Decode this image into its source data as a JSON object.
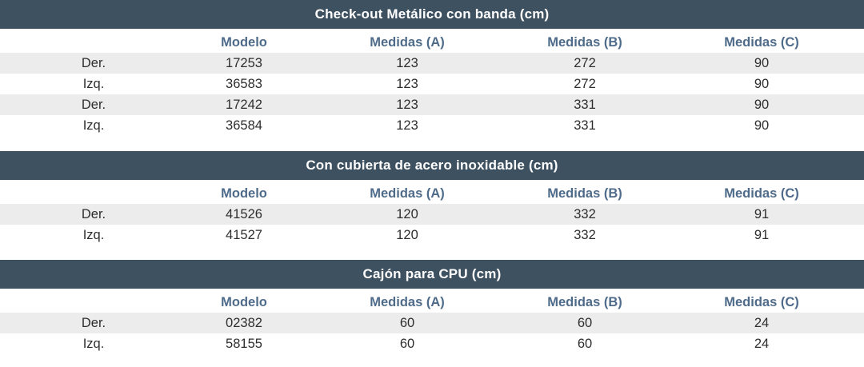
{
  "sections": [
    {
      "title": "Check-out Metálico con banda (cm)",
      "headers": [
        "",
        "Modelo",
        "Medidas (A)",
        "Medidas (B)",
        "Medidas (C)"
      ],
      "rows": [
        [
          "Der.",
          "17253",
          "123",
          "272",
          "90"
        ],
        [
          "Izq.",
          "36583",
          "123",
          "272",
          "90"
        ],
        [
          "Der.",
          "17242",
          "123",
          "331",
          "90"
        ],
        [
          "Izq.",
          "36584",
          "123",
          "331",
          "90"
        ]
      ]
    },
    {
      "title": "Con cubierta de acero inoxidable (cm)",
      "headers": [
        "",
        "Modelo",
        "Medidas (A)",
        "Medidas (B)",
        "Medidas (C)"
      ],
      "rows": [
        [
          "Der.",
          "41526",
          "120",
          "332",
          "91"
        ],
        [
          "Izq.",
          "41527",
          "120",
          "332",
          "91"
        ]
      ]
    },
    {
      "title": "Cajón para CPU (cm)",
      "headers": [
        "",
        "Modelo",
        "Medidas (A)",
        "Medidas (B)",
        "Medidas (C)"
      ],
      "rows": [
        [
          "Der.",
          "02382",
          "60",
          "60",
          "24"
        ],
        [
          "Izq.",
          "58155",
          "60",
          "60",
          "24"
        ]
      ]
    }
  ],
  "colors": {
    "header_bg": "#3e5160",
    "header_text": "#ffffff",
    "column_header_text": "#4f6b8a",
    "shaded_row": "#ececec"
  }
}
